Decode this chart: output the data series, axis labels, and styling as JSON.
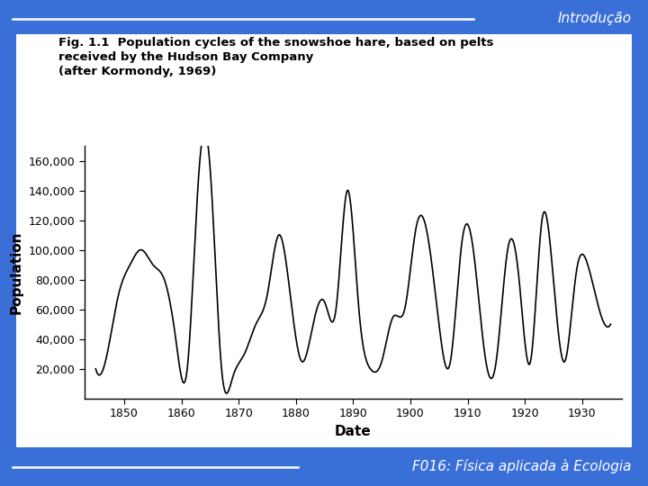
{
  "title_line1": "Fig. 1.1  Population cycles of the snowshoe hare, based on pelts",
  "title_line2": "received by the Hudson Bay Company",
  "title_line3": "(after Kormondy, 1969)",
  "xlabel": "Date",
  "ylabel": "Population",
  "bg_color": "#3a6fd8",
  "plot_bg": "#ffffff",
  "top_label": "Introdução",
  "bottom_label": "F016: Física aplicada à Ecologia",
  "years": [
    1845,
    1847,
    1849,
    1851,
    1853,
    1855,
    1857,
    1859,
    1861,
    1863,
    1865,
    1867,
    1869,
    1871,
    1873,
    1875,
    1877,
    1879,
    1881,
    1883,
    1885,
    1887,
    1889,
    1891,
    1893,
    1895,
    1897,
    1899,
    1901,
    1903,
    1905,
    1907,
    1909,
    1911,
    1913,
    1915,
    1917,
    1919,
    1921,
    1923,
    1925,
    1927,
    1929,
    1931,
    1933,
    1935
  ],
  "population": [
    20000,
    30000,
    70000,
    90000,
    100000,
    90000,
    80000,
    40000,
    20000,
    150000,
    155000,
    20000,
    15000,
    30000,
    50000,
    70000,
    110000,
    70000,
    25000,
    50000,
    65000,
    60000,
    140000,
    60000,
    20000,
    25000,
    55000,
    60000,
    115000,
    110000,
    50000,
    25000,
    105000,
    100000,
    30000,
    25000,
    100000,
    80000,
    25000,
    120000,
    80000,
    25000,
    85000,
    90000,
    60000,
    50000
  ],
  "ylim": [
    0,
    170000
  ],
  "xlim": [
    1843,
    1937
  ],
  "yticks": [
    20000,
    40000,
    60000,
    80000,
    100000,
    120000,
    140000,
    160000
  ],
  "xticks": [
    1850,
    1860,
    1870,
    1880,
    1890,
    1900,
    1910,
    1920,
    1930
  ]
}
